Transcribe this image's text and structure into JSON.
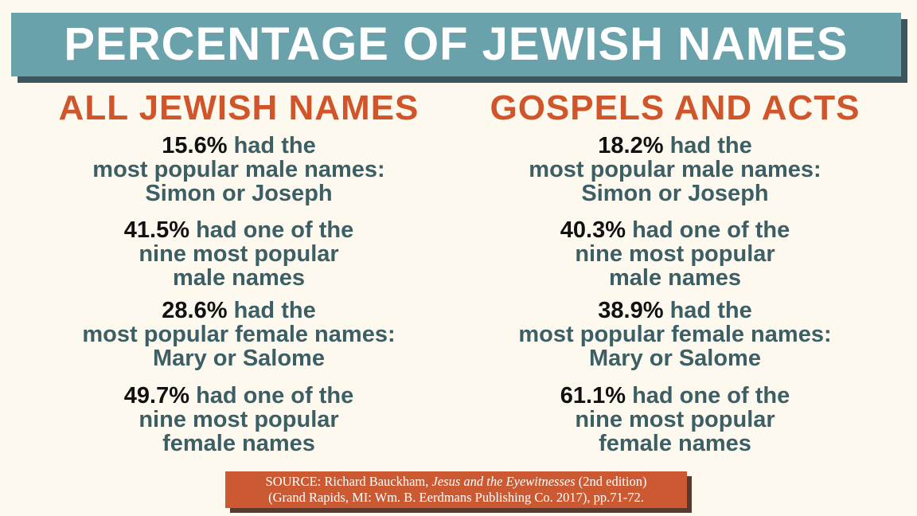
{
  "header": {
    "title": "PERCENTAGE OF JEWISH NAMES"
  },
  "columns": [
    {
      "heading": "ALL JEWISH NAMES",
      "stats": [
        {
          "percent": "15.6%",
          "lines": [
            "had the",
            "most popular male names:",
            "Simon or Joseph"
          ]
        },
        {
          "percent": "41.5%",
          "lines": [
            "had one of the",
            "nine most popular",
            "male names"
          ]
        },
        {
          "percent": "28.6%",
          "lines": [
            "had the",
            "most popular female names:",
            "Mary or Salome"
          ]
        },
        {
          "percent": "49.7%",
          "lines": [
            "had one of the",
            "nine most popular",
            "female names"
          ]
        }
      ]
    },
    {
      "heading": "GOSPELS AND ACTS",
      "stats": [
        {
          "percent": "18.2%",
          "lines": [
            "had the",
            "most popular male names:",
            "Simon or Joseph"
          ]
        },
        {
          "percent": "40.3%",
          "lines": [
            "had one of the",
            "nine most popular",
            "male names"
          ]
        },
        {
          "percent": "38.9%",
          "lines": [
            "had the",
            "most popular female names:",
            "Mary or Salome"
          ]
        },
        {
          "percent": "61.1%",
          "lines": [
            "had one of the",
            "nine most popular",
            "female names"
          ]
        }
      ]
    }
  ],
  "source": {
    "prefix": "SOURCE: Richard Bauckham, ",
    "book": "Jesus and the Eyewitnesses",
    "suffix": " (2nd edition)",
    "line2": "(Grand Rapids, MI: Wm. B. Eerdmans Publishing Co. 2017), pp.71-72."
  }
}
